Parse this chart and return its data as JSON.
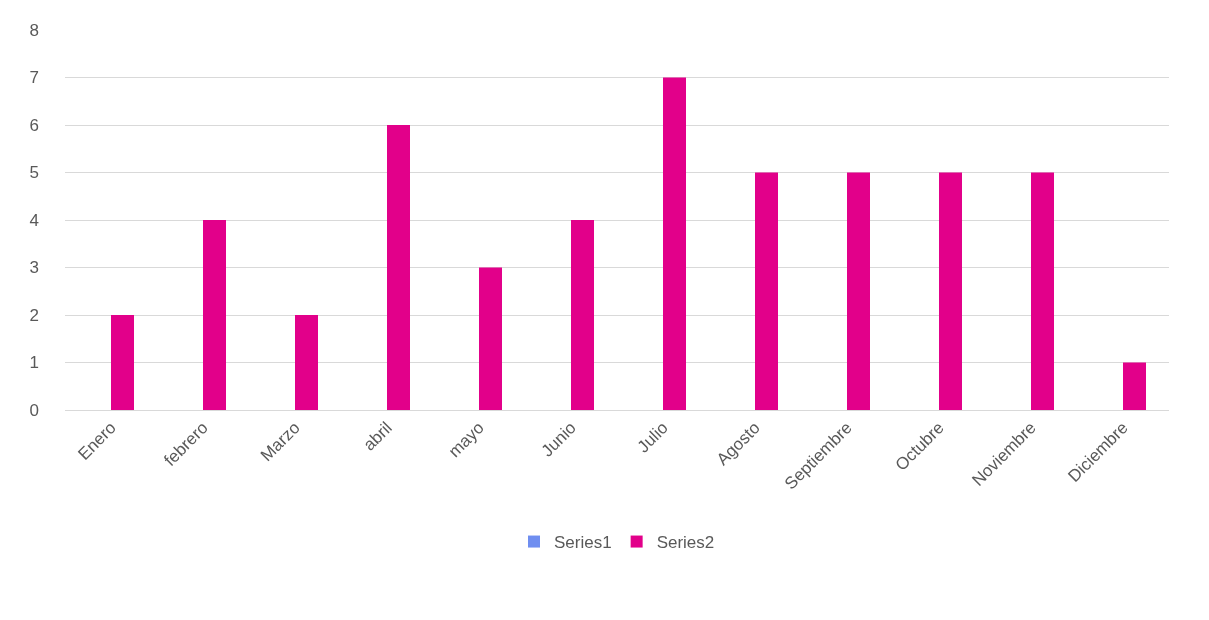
{
  "chart_data": {
    "type": "bar",
    "categories": [
      "Enero",
      "febrero",
      "Marzo",
      "abril",
      "mayo",
      "Junio",
      "Julio",
      "Agosto",
      "Septiembre",
      "Octubre",
      "Noviembre",
      "Diciembre"
    ],
    "series": [
      {
        "name": "Series1",
        "color": "#6f8ef0",
        "values": [
          null,
          null,
          null,
          null,
          null,
          null,
          null,
          null,
          null,
          null,
          null,
          null
        ]
      },
      {
        "name": "Series2",
        "color": "#e2008a",
        "values": [
          2,
          4,
          2,
          6,
          3,
          4,
          7,
          5,
          5,
          5,
          5,
          1
        ]
      }
    ],
    "ylim": [
      0,
      8
    ],
    "yticks": [
      0,
      1,
      2,
      3,
      4,
      5,
      6,
      7,
      8
    ],
    "grid": "y",
    "legend": "bottom"
  }
}
